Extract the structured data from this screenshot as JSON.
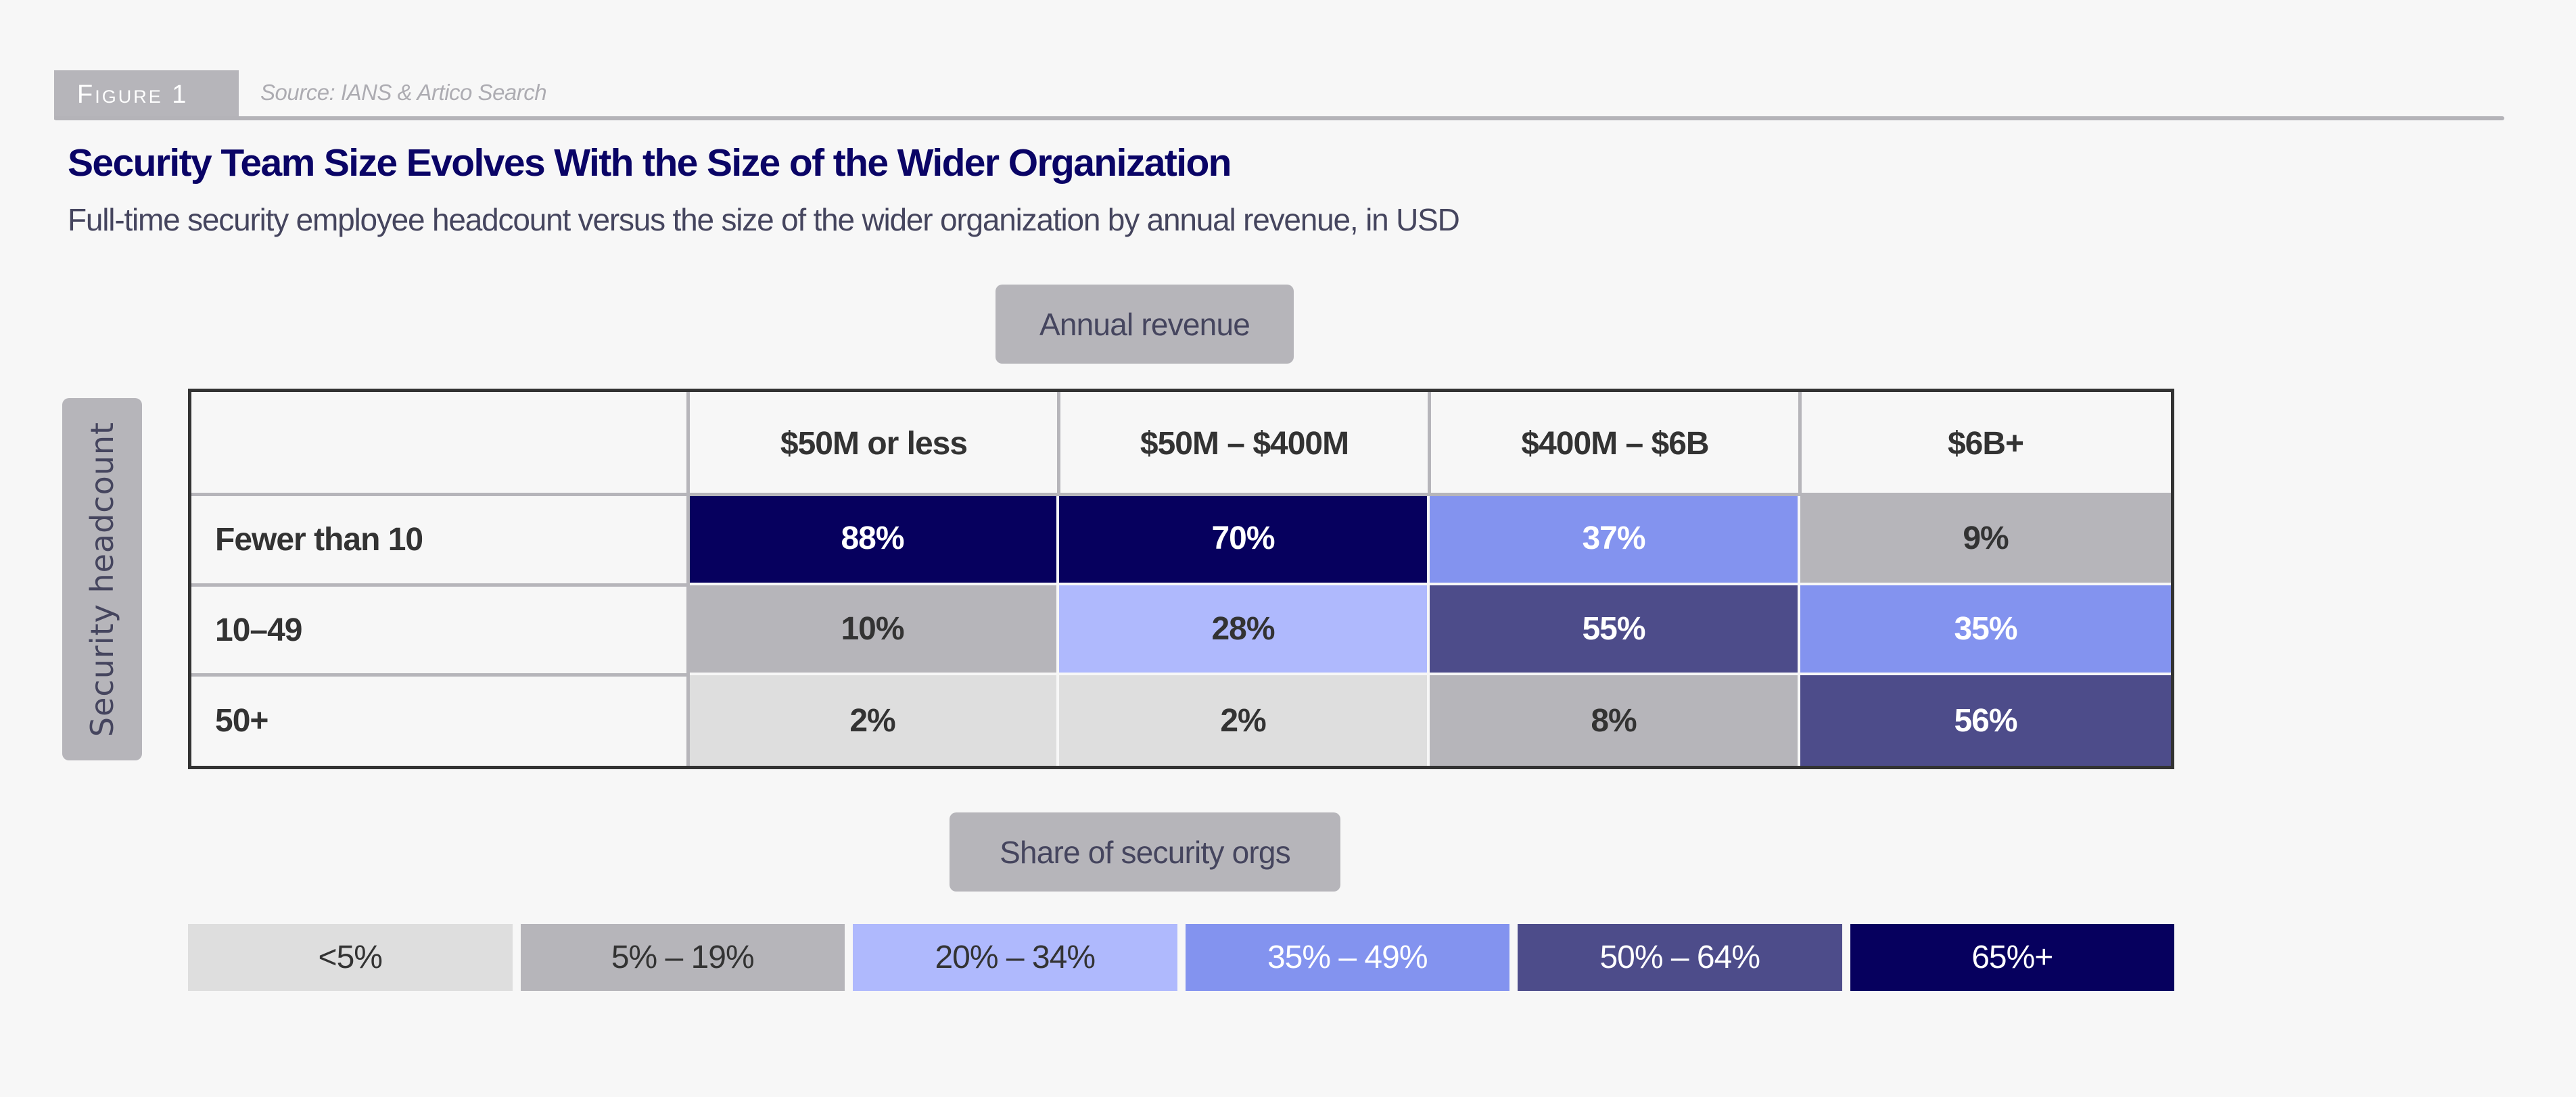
{
  "header": {
    "figure_label": "Figure 1",
    "source": "Source: IANS & Artico Search",
    "title": "Security Team Size Evolves With the Size of the Wider Organization",
    "subtitle": "Full-time security employee headcount versus the size of the wider organization by annual revenue, in USD"
  },
  "colors": {
    "background": "#f7f7f7",
    "title": "#0a0466",
    "bin_lt5": "#dedede",
    "bin_5_19": "#b6b5ba",
    "bin_20_34": "#afb9fd",
    "bin_35_49": "#8393ef",
    "bin_50_64": "#4d4c8a",
    "bin_65plus": "#06005e",
    "text_dark": "#333333",
    "text_light": "#ffffff"
  },
  "chart_data": {
    "type": "heatmap",
    "title": "Security Team Size Evolves With the Size of the Wider Organization",
    "subtitle": "Full-time security employee headcount versus the size of the wider organization by annual revenue, in USD",
    "xlabel": "Annual revenue",
    "ylabel": "Security headcount",
    "x_categories": [
      "$50M or less",
      "$50M – $400M",
      "$400M – $6B",
      "$6B+"
    ],
    "y_categories": [
      "Fewer than 10",
      "10–49",
      "50+"
    ],
    "values": [
      [
        88,
        70,
        37,
        9
      ],
      [
        10,
        28,
        55,
        35
      ],
      [
        2,
        2,
        8,
        56
      ]
    ],
    "value_labels": [
      [
        "88%",
        "70%",
        "37%",
        "9%"
      ],
      [
        "10%",
        "28%",
        "55%",
        "35%"
      ],
      [
        "2%",
        "2%",
        "8%",
        "56%"
      ]
    ],
    "unit": "%",
    "legend": {
      "title": "Share of security orgs",
      "placement": "bottom",
      "bins": [
        {
          "label": "<5%",
          "min": 0,
          "max": 4,
          "color": "#dedede",
          "text": "#333333"
        },
        {
          "label": "5% – 19%",
          "min": 5,
          "max": 19,
          "color": "#b6b5ba",
          "text": "#333333"
        },
        {
          "label": "20% – 34%",
          "min": 20,
          "max": 34,
          "color": "#afb9fd",
          "text": "#333333"
        },
        {
          "label": "35% – 49%",
          "min": 35,
          "max": 49,
          "color": "#8393ef",
          "text": "#ffffff"
        },
        {
          "label": "50% – 64%",
          "min": 50,
          "max": 64,
          "color": "#4d4c8a",
          "text": "#ffffff"
        },
        {
          "label": "65%+",
          "min": 65,
          "max": 100,
          "color": "#06005e",
          "text": "#ffffff"
        }
      ]
    }
  }
}
